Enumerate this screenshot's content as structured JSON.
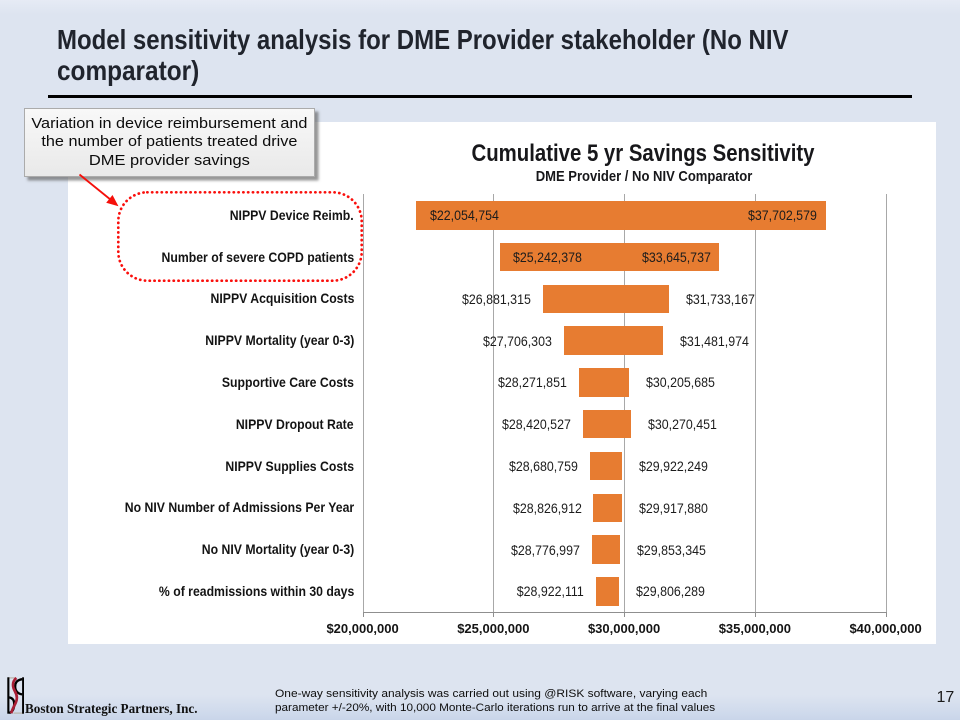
{
  "slide": {
    "title_lines": [
      "Model sensitivity analysis for DME Provider stakeholder (No NIV",
      "comparator)"
    ],
    "page_number": "17"
  },
  "callout": {
    "lines": [
      "Variation in device reimbursement and",
      "the number of patients treated drive",
      "DME provider savings"
    ]
  },
  "footer": {
    "company": "Boston Strategic Partners, Inc.",
    "logo": "bsp-logo",
    "note_lines": [
      "One-way sensitivity analysis was carried out using @RISK software, varying each",
      "parameter +/-20%, with 10,000 Monte-Carlo iterations run to arrive at the final values"
    ]
  },
  "chart_data": {
    "type": "bar",
    "variant": "tornado",
    "title": "Cumulative 5 yr Savings Sensitivity",
    "subtitle": "DME Provider / No NIV Comparator",
    "categories": [
      "NIPPV Device Reimb.",
      "Number of severe COPD patients",
      "NIPPV Acquisition Costs",
      "NIPPV Mortality (year 0-3)",
      "Supportive Care Costs",
      "NIPPV Dropout Rate",
      "NIPPV Supplies Costs",
      "No NIV Number of Admissions Per Year",
      "No NIV Mortality (year 0-3)",
      "% of readmissions within 30 days"
    ],
    "series": [
      {
        "name": "low",
        "values": [
          22054754,
          25242378,
          26881315,
          27706303,
          28271851,
          28420527,
          28680759,
          28826912,
          28776997,
          28922111
        ],
        "labels": [
          "$22,054,754",
          "$25,242,378",
          "$26,881,315",
          "$27,706,303",
          "$28,271,851",
          "$28,420,527",
          "$28,680,759",
          "$28,826,912",
          "$28,776,997",
          "$28,922,111"
        ]
      },
      {
        "name": "high",
        "values": [
          37702579,
          33645737,
          31733167,
          31481974,
          30205685,
          30270451,
          29922249,
          29917880,
          29853345,
          29806289
        ],
        "labels": [
          "$37,702,579",
          "$33,645,737",
          "$31,733,167",
          "$31,481,974",
          "$30,205,685",
          "$30,270,451",
          "$29,922,249",
          "$29,917,880",
          "$29,853,345",
          "$29,806,289"
        ]
      }
    ],
    "xlim": [
      20000000,
      40000000
    ],
    "xticks": {
      "values": [
        20000000,
        25000000,
        30000000,
        35000000,
        40000000
      ],
      "labels": [
        "$20,000,000",
        "$25,000,000",
        "$30,000,000",
        "$35,000,000",
        "$40,000,000"
      ]
    },
    "grid": true,
    "legend": false,
    "bar_color": "#e77c31",
    "grid_color": "#a8a8a8"
  }
}
